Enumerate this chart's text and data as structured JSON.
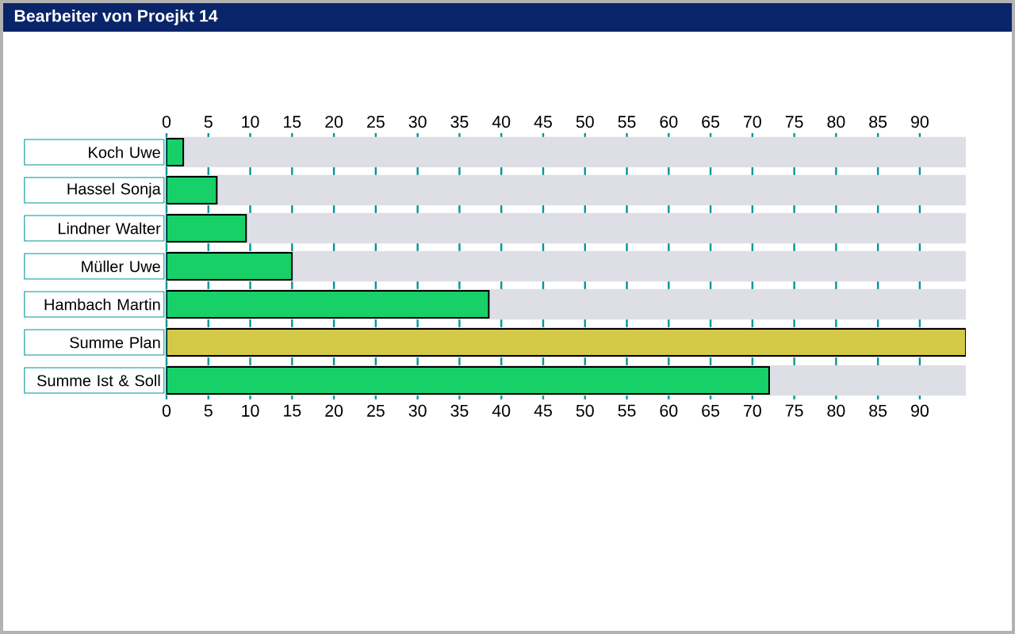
{
  "chart_data": {
    "type": "bar",
    "orientation": "horizontal",
    "title": "Bearbeiter von Proejkt 14",
    "categories": [
      "Koch Uwe",
      "Hassel Sonja",
      "Lindner Walter",
      "Müller Uwe",
      "Hambach Martin",
      "Summe Plan",
      "Summe Ist & Soll"
    ],
    "values": [
      2,
      6,
      9.5,
      15,
      38.5,
      95.5,
      72
    ],
    "colors": [
      "#18d068",
      "#18d068",
      "#18d068",
      "#18d068",
      "#18d068",
      "#d4c848",
      "#18d068"
    ],
    "xlim": [
      0,
      95.5
    ],
    "xticks": [
      0,
      5,
      10,
      15,
      20,
      25,
      30,
      35,
      40,
      45,
      50,
      55,
      60,
      65,
      70,
      75,
      80,
      85,
      90
    ],
    "x2lim": [
      0,
      95.5
    ],
    "x2ticks": [
      0,
      5,
      10,
      15,
      20,
      25,
      30,
      35,
      40,
      45,
      50,
      55,
      60,
      65,
      70,
      75,
      80,
      85,
      90
    ],
    "grid": "x"
  }
}
